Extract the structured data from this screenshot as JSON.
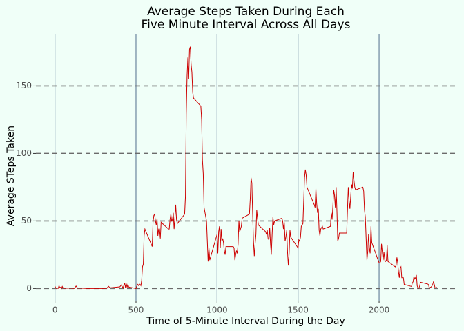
{
  "chart_data": {
    "type": "line",
    "title": [
      "Average Steps Taken During Each",
      "Five Minute Interval Across All Days"
    ],
    "x_label": "Time of 5-Minute Interval During the Day",
    "y_label": "Average STeps Taken",
    "xlim": [
      -117.75,
      2472.75
    ],
    "xticks": [
      0,
      500,
      1000,
      1500,
      2000
    ],
    "ylim": [
      -9,
      188
    ],
    "yticks": [
      0,
      50,
      100,
      150
    ],
    "grid": true,
    "background": "#f0fff8",
    "grid_x_color": "#5f7a96",
    "grid_y_color": "#6b6b6b",
    "series": [
      {
        "color": "#cc0000",
        "x": [
          0,
          5,
          10,
          15,
          20,
          25,
          30,
          35,
          40,
          45,
          50,
          55,
          100,
          110,
          120,
          130,
          140,
          150,
          200,
          230,
          300,
          320,
          330,
          340,
          400,
          410,
          420,
          430,
          435,
          440,
          445,
          450,
          455,
          500,
          505,
          510,
          515,
          520,
          525,
          530,
          535,
          540,
          545,
          550,
          555,
          600,
          605,
          610,
          615,
          620,
          625,
          630,
          635,
          640,
          645,
          650,
          655,
          700,
          705,
          710,
          715,
          720,
          725,
          730,
          735,
          740,
          745,
          750,
          755,
          800,
          805,
          810,
          815,
          820,
          825,
          830,
          835,
          840,
          845,
          850,
          855,
          900,
          905,
          910,
          915,
          920,
          935,
          945,
          950,
          955,
          1000,
          1005,
          1010,
          1015,
          1020,
          1025,
          1030,
          1035,
          1040,
          1045,
          1050,
          1055,
          1100,
          1105,
          1110,
          1115,
          1120,
          1125,
          1130,
          1135,
          1140,
          1145,
          1150,
          1155,
          1200,
          1205,
          1210,
          1215,
          1220,
          1225,
          1230,
          1235,
          1240,
          1245,
          1250,
          1255,
          1300,
          1305,
          1310,
          1315,
          1320,
          1325,
          1330,
          1335,
          1340,
          1345,
          1350,
          1355,
          1400,
          1405,
          1410,
          1415,
          1420,
          1425,
          1430,
          1435,
          1440,
          1445,
          1450,
          1455,
          1500,
          1505,
          1510,
          1515,
          1520,
          1525,
          1530,
          1535,
          1540,
          1545,
          1550,
          1555,
          1600,
          1605,
          1610,
          1615,
          1620,
          1625,
          1630,
          1635,
          1640,
          1645,
          1650,
          1655,
          1700,
          1705,
          1710,
          1715,
          1720,
          1725,
          1730,
          1735,
          1740,
          1745,
          1750,
          1755,
          1800,
          1805,
          1810,
          1815,
          1820,
          1825,
          1830,
          1835,
          1840,
          1845,
          1850,
          1855,
          1900,
          1905,
          1910,
          1915,
          1920,
          1925,
          1930,
          1935,
          1940,
          1945,
          1950,
          1955,
          2000,
          2005,
          2010,
          2015,
          2020,
          2025,
          2030,
          2035,
          2040,
          2045,
          2050,
          2055,
          2100,
          2105,
          2110,
          2115,
          2120,
          2125,
          2130,
          2135,
          2140,
          2145,
          2150,
          2155,
          2200,
          2205,
          2210,
          2215,
          2220,
          2225,
          2230,
          2235,
          2240,
          2245,
          2250,
          2255,
          2300,
          2305,
          2310,
          2315,
          2320,
          2325,
          2330,
          2335,
          2340,
          2345,
          2350,
          2355
        ],
        "values": [
          1.7,
          0.3,
          0.1,
          0.2,
          0.1,
          2.1,
          0.5,
          0.9,
          0,
          1.5,
          0.3,
          0.1,
          0.3,
          0.2,
          0,
          1.8,
          0.2,
          0.3,
          0,
          0,
          0,
          0.2,
          1.6,
          0.5,
          1.2,
          2.6,
          0.3,
          4.1,
          0.7,
          3.5,
          0.8,
          3.1,
          1.1,
          0,
          1.6,
          3,
          2.2,
          3.3,
          3,
          2.1,
          6,
          16,
          18,
          39,
          44,
          31,
          49,
          54,
          55,
          50,
          47,
          52,
          39,
          44,
          44,
          37,
          49,
          44,
          44,
          51,
          55,
          50,
          51,
          56,
          44,
          52,
          62,
          51,
          48,
          55,
          68,
          129,
          157,
          171,
          155,
          177,
          179,
          166,
          160,
          145,
          141,
          135,
          125,
          95,
          85,
          60,
          50,
          20,
          30,
          21,
          40,
          26,
          42,
          46,
          30,
          44,
          35,
          37,
          34,
          28,
          25,
          31,
          31,
          30,
          21,
          25,
          28,
          26,
          33,
          50,
          42,
          44,
          46,
          52,
          55,
          66,
          82,
          78,
          55,
          35,
          24,
          33,
          40,
          58,
          52,
          47,
          42,
          40,
          43,
          37,
          36,
          45,
          33,
          25,
          40,
          53,
          47,
          50,
          52,
          50,
          44,
          49,
          35,
          38,
          43,
          27,
          17,
          26,
          43,
          38,
          30,
          36,
          35,
          38,
          46,
          47,
          48,
          65,
          82,
          88,
          84,
          75,
          62,
          60,
          74,
          63,
          56,
          59,
          43,
          39,
          44,
          45,
          46,
          44,
          46,
          56,
          51,
          61,
          73,
          69,
          60,
          75,
          57,
          35,
          37,
          41,
          41,
          58,
          75,
          65,
          59,
          68,
          77,
          74,
          86,
          80,
          75,
          73,
          75,
          72,
          58,
          53,
          37,
          21,
          27,
          40,
          30,
          26,
          46,
          34,
          19,
          19,
          20,
          33,
          27,
          21,
          27,
          21,
          20,
          21,
          32,
          20,
          16,
          17,
          23,
          19,
          12,
          8,
          15,
          16,
          8,
          8,
          8,
          3,
          1.5,
          4,
          5,
          9,
          7,
          8,
          10,
          2,
          0.3,
          0.1,
          1.6,
          4.6,
          3.3,
          2.8,
          0,
          0.8,
          1,
          1.6,
          2.6,
          4.7,
          3.3,
          0.6,
          0.2,
          1.1
        ]
      }
    ]
  }
}
